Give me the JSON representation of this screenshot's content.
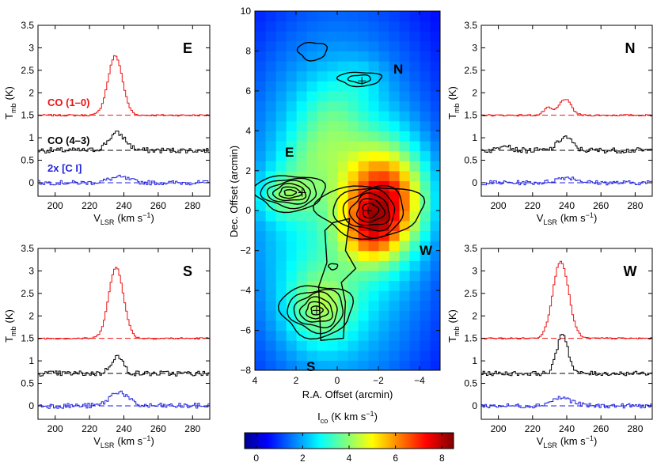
{
  "spectra_axes": {
    "y_label": "T",
    "y_label_sub": "mb",
    "y_label_unit": "(K)",
    "x_label": "V",
    "x_label_sub": "LSR",
    "x_label_unit": "(km s",
    "x_label_sup": "−1",
    "x_label_close": ")"
  },
  "legend": {
    "co10": "CO (1–0)",
    "co43": "CO (4–3)",
    "ci": "2x [C I]"
  },
  "map": {
    "xlabel": "R.A. Offset (arcmin)",
    "ylabel": "Dec. Offset (arcmin)",
    "region_labels": [
      "N",
      "E",
      "W",
      "S"
    ]
  },
  "colorbar": {
    "label": "I",
    "label_sub": "co",
    "label_unit": "(K km s",
    "label_sup": "−1",
    "label_close": ")",
    "ticks": [
      "0",
      "2",
      "4",
      "6",
      "8"
    ],
    "range": [
      -0.5,
      8.5
    ]
  },
  "colors": {
    "co10": "#ee1111",
    "co43": "#000000",
    "ci": "#2222dd"
  },
  "chart_data": [
    {
      "type": "line",
      "panel": "E",
      "title": "E",
      "xlim": [
        190,
        290
      ],
      "ylim": [
        -0.3,
        3.5
      ],
      "x_ticks": [
        200,
        220,
        240,
        260,
        280
      ],
      "y_ticks": [
        0,
        0.5,
        1,
        1.5,
        2,
        2.5,
        3,
        3.5
      ],
      "series": [
        {
          "name": "CO (1-0)",
          "baseline": 1.5,
          "components": [
            {
              "amp": 1.32,
              "center": 235,
              "sigma": 4.2
            }
          ],
          "noise": 0.018
        },
        {
          "name": "CO (4-3)",
          "baseline": 0.72,
          "components": [
            {
              "amp": 0.38,
              "center": 236,
              "sigma": 5
            }
          ],
          "noise": 0.06
        },
        {
          "name": "2x [C I]",
          "baseline": 0.0,
          "components": [
            {
              "amp": 0.12,
              "center": 237,
              "sigma": 6
            }
          ],
          "noise": 0.05
        }
      ]
    },
    {
      "type": "line",
      "panel": "N",
      "title": "N",
      "xlim": [
        190,
        290
      ],
      "ylim": [
        -0.3,
        3.5
      ],
      "x_ticks": [
        200,
        220,
        240,
        260,
        280
      ],
      "y_ticks": [
        0,
        0.5,
        1,
        1.5,
        2,
        2.5,
        3,
        3.5
      ],
      "series": [
        {
          "name": "CO (1-0)",
          "baseline": 1.5,
          "components": [
            {
              "amp": 0.36,
              "center": 239,
              "sigma": 3.5
            },
            {
              "amp": 0.16,
              "center": 229,
              "sigma": 2.5
            }
          ],
          "noise": 0.018
        },
        {
          "name": "CO (4-3)",
          "baseline": 0.72,
          "components": [
            {
              "amp": 0.3,
              "center": 239,
              "sigma": 4
            },
            {
              "amp": 0.15,
              "center": 204,
              "sigma": 3
            }
          ],
          "noise": 0.06
        },
        {
          "name": "2x [C I]",
          "baseline": 0.0,
          "components": [
            {
              "amp": 0.12,
              "center": 240,
              "sigma": 6
            }
          ],
          "noise": 0.05
        }
      ]
    },
    {
      "type": "line",
      "panel": "S",
      "title": "S",
      "xlim": [
        190,
        290
      ],
      "ylim": [
        -0.3,
        3.5
      ],
      "x_ticks": [
        200,
        220,
        240,
        260,
        280
      ],
      "y_ticks": [
        0,
        0.5,
        1,
        1.5,
        2,
        2.5,
        3,
        3.5
      ],
      "series": [
        {
          "name": "CO (1-0)",
          "baseline": 1.5,
          "components": [
            {
              "amp": 1.58,
              "center": 235.5,
              "sigma": 4.3
            }
          ],
          "noise": 0.018
        },
        {
          "name": "CO (4-3)",
          "baseline": 0.72,
          "components": [
            {
              "amp": 0.38,
              "center": 236,
              "sigma": 3.5
            }
          ],
          "noise": 0.06
        },
        {
          "name": "2x [C I]",
          "baseline": 0.0,
          "components": [
            {
              "amp": 0.32,
              "center": 237,
              "sigma": 5
            }
          ],
          "noise": 0.06
        }
      ]
    },
    {
      "type": "line",
      "panel": "W",
      "title": "W",
      "xlim": [
        190,
        290
      ],
      "ylim": [
        -0.3,
        3.5
      ],
      "x_ticks": [
        200,
        220,
        240,
        260,
        280
      ],
      "y_ticks": [
        0,
        0.5,
        1,
        1.5,
        2,
        2.5,
        3,
        3.5
      ],
      "series": [
        {
          "name": "CO (1-0)",
          "baseline": 1.5,
          "components": [
            {
              "amp": 1.72,
              "center": 236.5,
              "sigma": 4.6
            }
          ],
          "noise": 0.018
        },
        {
          "name": "CO (4-3)",
          "baseline": 0.72,
          "components": [
            {
              "amp": 0.9,
              "center": 237.5,
              "sigma": 3.2
            }
          ],
          "noise": 0.05
        },
        {
          "name": "2x [C I]",
          "baseline": 0.0,
          "components": [
            {
              "amp": 0.18,
              "center": 237,
              "sigma": 6
            }
          ],
          "noise": 0.05
        }
      ]
    },
    {
      "type": "heatmap",
      "panel": "map",
      "xlabel": "R.A. Offset (arcmin)",
      "ylabel": "Dec. Offset (arcmin)",
      "xlim": [
        4,
        -5
      ],
      "ylim": [
        -8,
        10
      ],
      "x_ticks": [
        4,
        2,
        0,
        -2,
        -4
      ],
      "x_tick_labels": [
        "4",
        "2",
        "0",
        "−2",
        "−4"
      ],
      "y_ticks": [
        -8,
        -6,
        -4,
        -2,
        0,
        2,
        4,
        6,
        8,
        10
      ],
      "y_tick_labels": [
        "−8",
        "−6",
        "−4",
        "−2",
        "0",
        "2",
        "4",
        "6",
        "8",
        "10"
      ],
      "cell_size_arcmin": 0.5,
      "colorbar_range": [
        -0.5,
        8.5
      ],
      "intensity_blobs": [
        {
          "x": 0,
          "y": 0,
          "amp": 3.2,
          "sx": 4.0,
          "sy": 8.0
        },
        {
          "x": -2.3,
          "y": 0.6,
          "amp": 5.0,
          "sx": 1.4,
          "sy": 1.8
        },
        {
          "x": -1.6,
          "y": -1.2,
          "amp": 2.0,
          "sx": 0.9,
          "sy": 1.0
        },
        {
          "x": 2.6,
          "y": 0.8,
          "amp": 1.5,
          "sx": 1.0,
          "sy": 0.8
        },
        {
          "x": 0.8,
          "y": -4.8,
          "amp": 1.8,
          "sx": 1.2,
          "sy": 1.4
        },
        {
          "x": 0.3,
          "y": 4.5,
          "amp": 1.1,
          "sx": 1.2,
          "sy": 1.5
        },
        {
          "x": -1.2,
          "y": 6.6,
          "amp": 0.5,
          "sx": 0.8,
          "sy": 0.7
        },
        {
          "x": 1.5,
          "y": 2.6,
          "amp": 0.7,
          "sx": 1.0,
          "sy": 1.0
        }
      ],
      "contour_sources": [
        {
          "name": "E",
          "x": 2.3,
          "y": 0.9,
          "levels": [
            {
              "rx": 1.7,
              "ry": 0.9
            },
            {
              "rx": 1.35,
              "ry": 0.72
            },
            {
              "rx": 1.05,
              "ry": 0.56
            },
            {
              "rx": 0.78,
              "ry": 0.42
            },
            {
              "rx": 0.52,
              "ry": 0.28
            },
            {
              "rx": 0.28,
              "ry": 0.15
            }
          ]
        },
        {
          "name": "W",
          "x": -1.6,
          "y": 0.0,
          "levels": [
            {
              "rx": 2.6,
              "ry": 1.3
            },
            {
              "rx": 1.7,
              "ry": 1.25
            },
            {
              "rx": 1.25,
              "ry": 1.0
            },
            {
              "rx": 0.95,
              "ry": 0.8
            },
            {
              "rx": 0.65,
              "ry": 0.58
            },
            {
              "rx": 0.38,
              "ry": 0.36
            }
          ]
        },
        {
          "name": "S",
          "x": 1.0,
          "y": -5.0,
          "levels": [
            {
              "rx": 1.75,
              "ry": 1.3
            },
            {
              "rx": 1.35,
              "ry": 1.05
            },
            {
              "rx": 1.05,
              "ry": 0.85
            },
            {
              "rx": 0.78,
              "ry": 0.62
            },
            {
              "rx": 0.52,
              "ry": 0.42
            },
            {
              "rx": 0.28,
              "ry": 0.22
            }
          ]
        },
        {
          "name": "N",
          "x": -1.1,
          "y": 6.6,
          "levels": [
            {
              "rx": 1.05,
              "ry": 0.35
            },
            {
              "rx": 0.55,
              "ry": 0.2
            }
          ]
        },
        {
          "name": "N2",
          "x": 1.2,
          "y": 8.0,
          "levels": [
            {
              "rx": 0.7,
              "ry": 0.45
            }
          ]
        },
        {
          "name": "dot",
          "x": 0.2,
          "y": -2.8,
          "levels": [
            {
              "rx": 0.22,
              "ry": 0.15
            }
          ]
        }
      ],
      "bridge_contour": [
        [
          0.8,
          -6.5
        ],
        [
          0.9,
          -3.8
        ],
        [
          0.5,
          -2.6
        ],
        [
          0.6,
          -1.0
        ],
        [
          0.2,
          -0.6
        ],
        [
          -0.6,
          -0.4
        ],
        [
          -0.4,
          -2.0
        ],
        [
          -0.9,
          -2.9
        ],
        [
          -0.2,
          -3.6
        ],
        [
          -0.4,
          -4.6
        ],
        [
          -0.3,
          -6.4
        ]
      ],
      "cross_markers": [
        {
          "x": 1.7,
          "y": 0.9
        },
        {
          "x": -1.5,
          "y": 0.0
        },
        {
          "x": 1.0,
          "y": -5.0
        },
        {
          "x": -1.2,
          "y": 6.5
        }
      ]
    }
  ]
}
